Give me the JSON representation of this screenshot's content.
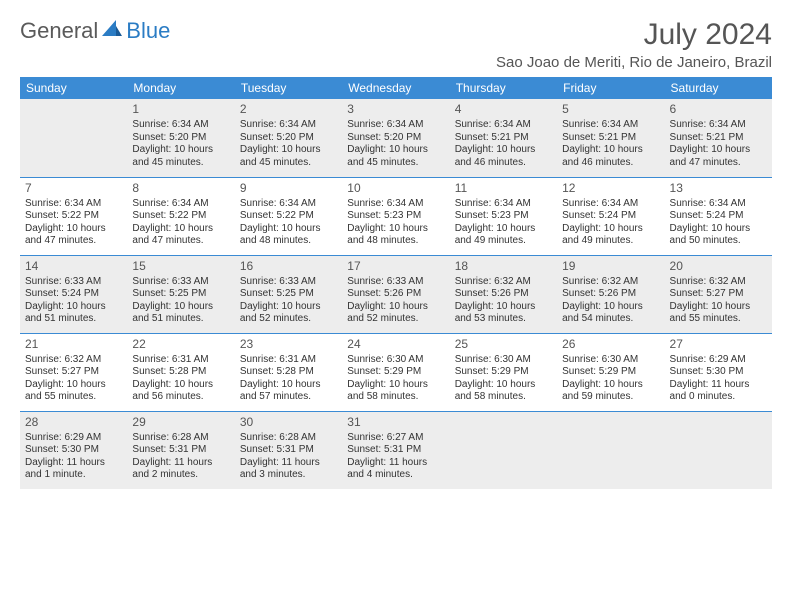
{
  "logo": {
    "part1": "General",
    "part2": "Blue"
  },
  "title": "July 2024",
  "location": "Sao Joao de Meriti, Rio de Janeiro, Brazil",
  "colors": {
    "header_bg": "#3b8bd4",
    "header_text": "#ffffff",
    "shaded_row": "#ededed",
    "border": "#3b8bd4",
    "text": "#333333",
    "title_text": "#555555"
  },
  "weekdays": [
    "Sunday",
    "Monday",
    "Tuesday",
    "Wednesday",
    "Thursday",
    "Friday",
    "Saturday"
  ],
  "weeks": [
    {
      "shaded": true,
      "days": [
        null,
        {
          "n": "1",
          "sunrise": "Sunrise: 6:34 AM",
          "sunset": "Sunset: 5:20 PM",
          "d1": "Daylight: 10 hours",
          "d2": "and 45 minutes."
        },
        {
          "n": "2",
          "sunrise": "Sunrise: 6:34 AM",
          "sunset": "Sunset: 5:20 PM",
          "d1": "Daylight: 10 hours",
          "d2": "and 45 minutes."
        },
        {
          "n": "3",
          "sunrise": "Sunrise: 6:34 AM",
          "sunset": "Sunset: 5:20 PM",
          "d1": "Daylight: 10 hours",
          "d2": "and 45 minutes."
        },
        {
          "n": "4",
          "sunrise": "Sunrise: 6:34 AM",
          "sunset": "Sunset: 5:21 PM",
          "d1": "Daylight: 10 hours",
          "d2": "and 46 minutes."
        },
        {
          "n": "5",
          "sunrise": "Sunrise: 6:34 AM",
          "sunset": "Sunset: 5:21 PM",
          "d1": "Daylight: 10 hours",
          "d2": "and 46 minutes."
        },
        {
          "n": "6",
          "sunrise": "Sunrise: 6:34 AM",
          "sunset": "Sunset: 5:21 PM",
          "d1": "Daylight: 10 hours",
          "d2": "and 47 minutes."
        }
      ]
    },
    {
      "shaded": false,
      "days": [
        {
          "n": "7",
          "sunrise": "Sunrise: 6:34 AM",
          "sunset": "Sunset: 5:22 PM",
          "d1": "Daylight: 10 hours",
          "d2": "and 47 minutes."
        },
        {
          "n": "8",
          "sunrise": "Sunrise: 6:34 AM",
          "sunset": "Sunset: 5:22 PM",
          "d1": "Daylight: 10 hours",
          "d2": "and 47 minutes."
        },
        {
          "n": "9",
          "sunrise": "Sunrise: 6:34 AM",
          "sunset": "Sunset: 5:22 PM",
          "d1": "Daylight: 10 hours",
          "d2": "and 48 minutes."
        },
        {
          "n": "10",
          "sunrise": "Sunrise: 6:34 AM",
          "sunset": "Sunset: 5:23 PM",
          "d1": "Daylight: 10 hours",
          "d2": "and 48 minutes."
        },
        {
          "n": "11",
          "sunrise": "Sunrise: 6:34 AM",
          "sunset": "Sunset: 5:23 PM",
          "d1": "Daylight: 10 hours",
          "d2": "and 49 minutes."
        },
        {
          "n": "12",
          "sunrise": "Sunrise: 6:34 AM",
          "sunset": "Sunset: 5:24 PM",
          "d1": "Daylight: 10 hours",
          "d2": "and 49 minutes."
        },
        {
          "n": "13",
          "sunrise": "Sunrise: 6:34 AM",
          "sunset": "Sunset: 5:24 PM",
          "d1": "Daylight: 10 hours",
          "d2": "and 50 minutes."
        }
      ]
    },
    {
      "shaded": true,
      "days": [
        {
          "n": "14",
          "sunrise": "Sunrise: 6:33 AM",
          "sunset": "Sunset: 5:24 PM",
          "d1": "Daylight: 10 hours",
          "d2": "and 51 minutes."
        },
        {
          "n": "15",
          "sunrise": "Sunrise: 6:33 AM",
          "sunset": "Sunset: 5:25 PM",
          "d1": "Daylight: 10 hours",
          "d2": "and 51 minutes."
        },
        {
          "n": "16",
          "sunrise": "Sunrise: 6:33 AM",
          "sunset": "Sunset: 5:25 PM",
          "d1": "Daylight: 10 hours",
          "d2": "and 52 minutes."
        },
        {
          "n": "17",
          "sunrise": "Sunrise: 6:33 AM",
          "sunset": "Sunset: 5:26 PM",
          "d1": "Daylight: 10 hours",
          "d2": "and 52 minutes."
        },
        {
          "n": "18",
          "sunrise": "Sunrise: 6:32 AM",
          "sunset": "Sunset: 5:26 PM",
          "d1": "Daylight: 10 hours",
          "d2": "and 53 minutes."
        },
        {
          "n": "19",
          "sunrise": "Sunrise: 6:32 AM",
          "sunset": "Sunset: 5:26 PM",
          "d1": "Daylight: 10 hours",
          "d2": "and 54 minutes."
        },
        {
          "n": "20",
          "sunrise": "Sunrise: 6:32 AM",
          "sunset": "Sunset: 5:27 PM",
          "d1": "Daylight: 10 hours",
          "d2": "and 55 minutes."
        }
      ]
    },
    {
      "shaded": false,
      "days": [
        {
          "n": "21",
          "sunrise": "Sunrise: 6:32 AM",
          "sunset": "Sunset: 5:27 PM",
          "d1": "Daylight: 10 hours",
          "d2": "and 55 minutes."
        },
        {
          "n": "22",
          "sunrise": "Sunrise: 6:31 AM",
          "sunset": "Sunset: 5:28 PM",
          "d1": "Daylight: 10 hours",
          "d2": "and 56 minutes."
        },
        {
          "n": "23",
          "sunrise": "Sunrise: 6:31 AM",
          "sunset": "Sunset: 5:28 PM",
          "d1": "Daylight: 10 hours",
          "d2": "and 57 minutes."
        },
        {
          "n": "24",
          "sunrise": "Sunrise: 6:30 AM",
          "sunset": "Sunset: 5:29 PM",
          "d1": "Daylight: 10 hours",
          "d2": "and 58 minutes."
        },
        {
          "n": "25",
          "sunrise": "Sunrise: 6:30 AM",
          "sunset": "Sunset: 5:29 PM",
          "d1": "Daylight: 10 hours",
          "d2": "and 58 minutes."
        },
        {
          "n": "26",
          "sunrise": "Sunrise: 6:30 AM",
          "sunset": "Sunset: 5:29 PM",
          "d1": "Daylight: 10 hours",
          "d2": "and 59 minutes."
        },
        {
          "n": "27",
          "sunrise": "Sunrise: 6:29 AM",
          "sunset": "Sunset: 5:30 PM",
          "d1": "Daylight: 11 hours",
          "d2": "and 0 minutes."
        }
      ]
    },
    {
      "shaded": true,
      "days": [
        {
          "n": "28",
          "sunrise": "Sunrise: 6:29 AM",
          "sunset": "Sunset: 5:30 PM",
          "d1": "Daylight: 11 hours",
          "d2": "and 1 minute."
        },
        {
          "n": "29",
          "sunrise": "Sunrise: 6:28 AM",
          "sunset": "Sunset: 5:31 PM",
          "d1": "Daylight: 11 hours",
          "d2": "and 2 minutes."
        },
        {
          "n": "30",
          "sunrise": "Sunrise: 6:28 AM",
          "sunset": "Sunset: 5:31 PM",
          "d1": "Daylight: 11 hours",
          "d2": "and 3 minutes."
        },
        {
          "n": "31",
          "sunrise": "Sunrise: 6:27 AM",
          "sunset": "Sunset: 5:31 PM",
          "d1": "Daylight: 11 hours",
          "d2": "and 4 minutes."
        },
        null,
        null,
        null
      ]
    }
  ]
}
